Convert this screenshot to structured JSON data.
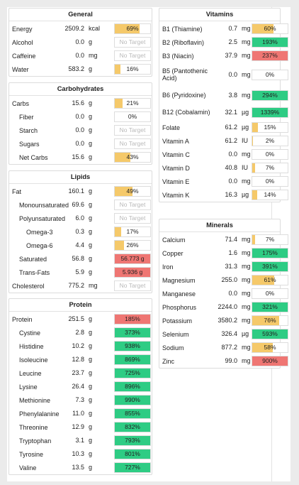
{
  "colors": {
    "low": "#f5c96a",
    "good": "#2ecc84",
    "over": "#ef7673"
  },
  "cards": [
    {
      "id": "general",
      "title": "General",
      "rows": [
        {
          "label": "Energy",
          "value": "2509.2",
          "unit": "kcal",
          "bar": "69%",
          "pct": 69,
          "status": "low"
        },
        {
          "label": "Alcohol",
          "value": "0.0",
          "unit": "g",
          "bar": "No Target",
          "pct": 0,
          "status": "none"
        },
        {
          "label": "Caffeine",
          "value": "0.0",
          "unit": "mg",
          "bar": "No Target",
          "pct": 0,
          "status": "none"
        },
        {
          "label": "Water",
          "value": "583.2",
          "unit": "g",
          "bar": "16%",
          "pct": 16,
          "status": "low"
        }
      ]
    },
    {
      "id": "carbohydrates",
      "title": "Carbohydrates",
      "rows": [
        {
          "label": "Carbs",
          "value": "15.6",
          "unit": "g",
          "bar": "21%",
          "pct": 21,
          "status": "low"
        },
        {
          "label": "Fiber",
          "value": "0.0",
          "unit": "g",
          "bar": "0%",
          "pct": 0,
          "status": "low",
          "indent": 1
        },
        {
          "label": "Starch",
          "value": "0.0",
          "unit": "g",
          "bar": "No Target",
          "pct": 0,
          "status": "none",
          "indent": 1
        },
        {
          "label": "Sugars",
          "value": "0.0",
          "unit": "g",
          "bar": "No Target",
          "pct": 0,
          "status": "none",
          "indent": 1
        },
        {
          "label": "Net Carbs",
          "value": "15.6",
          "unit": "g",
          "bar": "43%",
          "pct": 43,
          "status": "low",
          "indent": 1
        }
      ]
    },
    {
      "id": "lipids",
      "title": "Lipids",
      "rows": [
        {
          "label": "Fat",
          "value": "160.1",
          "unit": "g",
          "bar": "49%",
          "pct": 49,
          "status": "low"
        },
        {
          "label": "Monounsaturated",
          "value": "69.6",
          "unit": "g",
          "bar": "No Target",
          "pct": 0,
          "status": "none",
          "indent": 1
        },
        {
          "label": "Polyunsaturated",
          "value": "6.0",
          "unit": "g",
          "bar": "No Target",
          "pct": 0,
          "status": "none",
          "indent": 1
        },
        {
          "label": "Omega-3",
          "value": "0.3",
          "unit": "g",
          "bar": "17%",
          "pct": 17,
          "status": "low",
          "indent": 2
        },
        {
          "label": "Omega-6",
          "value": "4.4",
          "unit": "g",
          "bar": "26%",
          "pct": 26,
          "status": "low",
          "indent": 2
        },
        {
          "label": "Saturated",
          "value": "56.8",
          "unit": "g",
          "bar": "56.773 g",
          "pct": 100,
          "status": "over",
          "indent": 1
        },
        {
          "label": "Trans-Fats",
          "value": "5.9",
          "unit": "g",
          "bar": "5.936 g",
          "pct": 100,
          "status": "over",
          "indent": 1
        },
        {
          "label": "Cholesterol",
          "value": "775.2",
          "unit": "mg",
          "bar": "No Target",
          "pct": 0,
          "status": "none"
        }
      ]
    },
    {
      "id": "protein",
      "title": "Protein",
      "rows": [
        {
          "label": "Protein",
          "value": "251.5",
          "unit": "g",
          "bar": "185%",
          "pct": 100,
          "status": "over"
        },
        {
          "label": "Cystine",
          "value": "2.8",
          "unit": "g",
          "bar": "373%",
          "pct": 100,
          "status": "good",
          "indent": 1
        },
        {
          "label": "Histidine",
          "value": "10.2",
          "unit": "g",
          "bar": "938%",
          "pct": 100,
          "status": "good",
          "indent": 1
        },
        {
          "label": "Isoleucine",
          "value": "12.8",
          "unit": "g",
          "bar": "869%",
          "pct": 100,
          "status": "good",
          "indent": 1
        },
        {
          "label": "Leucine",
          "value": "23.7",
          "unit": "g",
          "bar": "725%",
          "pct": 100,
          "status": "good",
          "indent": 1
        },
        {
          "label": "Lysine",
          "value": "26.4",
          "unit": "g",
          "bar": "896%",
          "pct": 100,
          "status": "good",
          "indent": 1
        },
        {
          "label": "Methionine",
          "value": "7.3",
          "unit": "g",
          "bar": "990%",
          "pct": 100,
          "status": "good",
          "indent": 1
        },
        {
          "label": "Phenylalanine",
          "value": "11.0",
          "unit": "g",
          "bar": "855%",
          "pct": 100,
          "status": "good",
          "indent": 1
        },
        {
          "label": "Threonine",
          "value": "12.9",
          "unit": "g",
          "bar": "832%",
          "pct": 100,
          "status": "good",
          "indent": 1
        },
        {
          "label": "Tryptophan",
          "value": "3.1",
          "unit": "g",
          "bar": "793%",
          "pct": 100,
          "status": "good",
          "indent": 1
        },
        {
          "label": "Tyrosine",
          "value": "10.3",
          "unit": "g",
          "bar": "801%",
          "pct": 100,
          "status": "good",
          "indent": 1
        },
        {
          "label": "Valine",
          "value": "13.5",
          "unit": "g",
          "bar": "727%",
          "pct": 100,
          "status": "good",
          "indent": 1
        }
      ]
    },
    {
      "id": "vitamins",
      "title": "Vitamins",
      "rows": [
        {
          "label": "B1 (Thiamine)",
          "value": "0.7",
          "unit": "mg",
          "bar": "60%",
          "pct": 60,
          "status": "low"
        },
        {
          "label": "B2 (Riboflavin)",
          "value": "2.5",
          "unit": "mg",
          "bar": "193%",
          "pct": 100,
          "status": "good"
        },
        {
          "label": "B3 (Niacin)",
          "value": "37.9",
          "unit": "mg",
          "bar": "237%",
          "pct": 100,
          "status": "over"
        },
        {
          "label": "B5 (Pantothenic Acid)",
          "value": "0.0",
          "unit": "mg",
          "bar": "0%",
          "pct": 0,
          "status": "low",
          "h": 3
        },
        {
          "label": "B6 (Pyridoxine)",
          "value": "3.8",
          "unit": "mg",
          "bar": "294%",
          "pct": 100,
          "status": "good",
          "h": 2
        },
        {
          "label": "B12 (Cobalamin)",
          "value": "32.1",
          "unit": "µg",
          "bar": "1339%",
          "pct": 100,
          "status": "good",
          "h": 2
        },
        {
          "label": "Folate",
          "value": "61.2",
          "unit": "µg",
          "bar": "15%",
          "pct": 15,
          "status": "low"
        },
        {
          "label": "Vitamin A",
          "value": "61.2",
          "unit": "IU",
          "bar": "2%",
          "pct": 2,
          "status": "low"
        },
        {
          "label": "Vitamin C",
          "value": "0.0",
          "unit": "mg",
          "bar": "0%",
          "pct": 0,
          "status": "low"
        },
        {
          "label": "Vitamin D",
          "value": "40.8",
          "unit": "IU",
          "bar": "7%",
          "pct": 7,
          "status": "low"
        },
        {
          "label": "Vitamin E",
          "value": "0.0",
          "unit": "mg",
          "bar": "0%",
          "pct": 0,
          "status": "low"
        },
        {
          "label": "Vitamin K",
          "value": "16.3",
          "unit": "µg",
          "bar": "14%",
          "pct": 14,
          "status": "low"
        }
      ]
    },
    {
      "id": "minerals",
      "title": "Minerals",
      "rows": [
        {
          "label": "Calcium",
          "value": "71.4",
          "unit": "mg",
          "bar": "7%",
          "pct": 7,
          "status": "low"
        },
        {
          "label": "Copper",
          "value": "1.6",
          "unit": "mg",
          "bar": "175%",
          "pct": 100,
          "status": "good"
        },
        {
          "label": "Iron",
          "value": "31.3",
          "unit": "mg",
          "bar": "391%",
          "pct": 100,
          "status": "good"
        },
        {
          "label": "Magnesium",
          "value": "255.0",
          "unit": "mg",
          "bar": "61%",
          "pct": 61,
          "status": "low"
        },
        {
          "label": "Manganese",
          "value": "0.0",
          "unit": "mg",
          "bar": "0%",
          "pct": 0,
          "status": "low"
        },
        {
          "label": "Phosphorus",
          "value": "2244.0",
          "unit": "mg",
          "bar": "321%",
          "pct": 100,
          "status": "good"
        },
        {
          "label": "Potassium",
          "value": "3580.2",
          "unit": "mg",
          "bar": "76%",
          "pct": 76,
          "status": "low"
        },
        {
          "label": "Selenium",
          "value": "326.4",
          "unit": "µg",
          "bar": "593%",
          "pct": 100,
          "status": "good"
        },
        {
          "label": "Sodium",
          "value": "877.2",
          "unit": "mg",
          "bar": "58%",
          "pct": 58,
          "status": "low"
        },
        {
          "label": "Zinc",
          "value": "99.0",
          "unit": "mg",
          "bar": "900%",
          "pct": 100,
          "status": "over"
        }
      ]
    }
  ]
}
